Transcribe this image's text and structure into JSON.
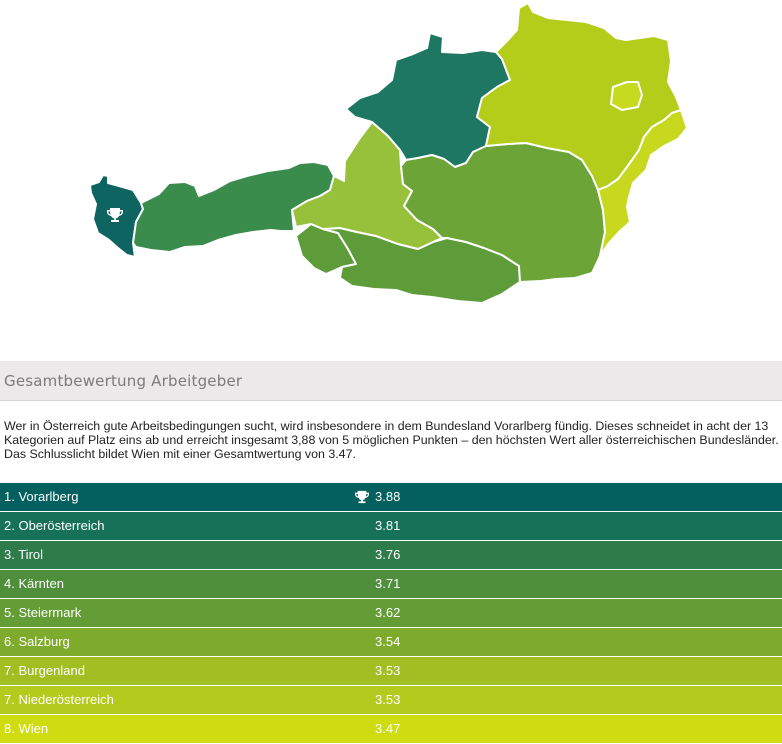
{
  "map": {
    "colors": {
      "vorarlberg": "#0d6461",
      "tirol": "#3a8c4c",
      "oberoesterreich": "#1e7762",
      "kaernten": "#5e9c3a",
      "steiermark": "#6ca438",
      "salzburg": "#97c13a",
      "burgenland": "#c8d81e",
      "niederoesterreich": "#b4cc1a",
      "wien": "#c6da20"
    },
    "winner_icon": "trophy-icon"
  },
  "section": {
    "title": "Gesamtbewertung Arbeitgeber",
    "description": "Wer in Österreich gute Arbeitsbedingungen sucht, wird insbesondere in dem Bundesland Vorarlberg fündig. Dieses schneidet in acht der 13 Kategorien auf Platz eins ab und erreicht insgesamt 3,88 von 5 möglichen Punkten – den höchsten Wert aller österreichischen Bundesländer. Das Schlusslicht bildet Wien mit einer Gesamtwertung von 3.47."
  },
  "ranking": [
    {
      "label": "1. Vorarlberg",
      "score": "3.88",
      "color": "#04605e",
      "trophy": true
    },
    {
      "label": "2. Oberösterreich",
      "score": "3.81",
      "color": "#177158",
      "trophy": false
    },
    {
      "label": "3. Tirol",
      "score": "3.76",
      "color": "#2e7c4a",
      "trophy": false
    },
    {
      "label": "4. Kärnten",
      "score": "3.71",
      "color": "#4f8e3b",
      "trophy": false
    },
    {
      "label": "5. Steiermark",
      "score": "3.62",
      "color": "#649c36",
      "trophy": false
    },
    {
      "label": "6. Salzburg",
      "score": "3.54",
      "color": "#7eab2b",
      "trophy": false
    },
    {
      "label": "7. Burgenland",
      "score": "3.53",
      "color": "#a1be22",
      "trophy": false
    },
    {
      "label": "7. Niederösterreich",
      "score": "3.53",
      "color": "#b4ca1c",
      "trophy": false
    },
    {
      "label": "8. Wien",
      "score": "3.47",
      "color": "#cfdc12",
      "trophy": false
    }
  ]
}
